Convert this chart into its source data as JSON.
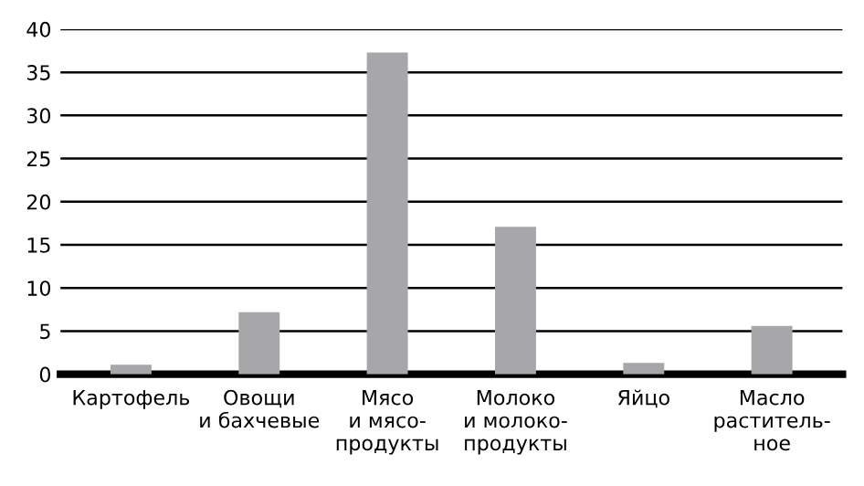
{
  "chart_data": {
    "type": "bar",
    "categories": [
      "Картофель",
      "Овощи\nи бахчевые",
      "Мясо\nи мясо-\nпродукты",
      "Молоко\nи молоко-\nпродукты",
      "Яйцо",
      "Масло\nраститель-\nное"
    ],
    "values": [
      1.1,
      7.2,
      37.3,
      17.1,
      1.3,
      5.6
    ],
    "color": "#a7a7aa",
    "ylim": [
      0,
      40
    ],
    "yticks": [
      0,
      5,
      10,
      15,
      20,
      25,
      30,
      35,
      40
    ],
    "grid": "y"
  }
}
